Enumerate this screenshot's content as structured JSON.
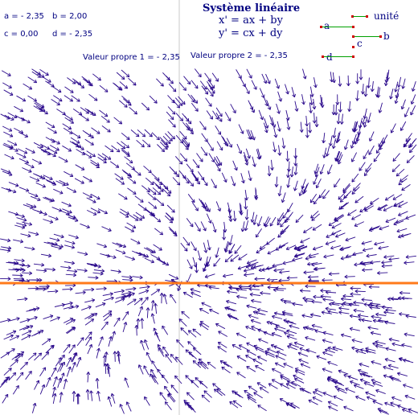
{
  "params": {
    "a": "a = - 2,35",
    "b": "b = 2,00",
    "c": "c = 0,00",
    "d": "d = - 2,35"
  },
  "eigen": {
    "v1": "Valeur propre 1 =  - 2,35",
    "v2": "Valeur propre 2 =  - 2,35"
  },
  "title": "Système linéaire",
  "equations": {
    "x": "x' = ax + by",
    "y": "y' = cx + dy"
  },
  "sliders": {
    "unit_label": "unité",
    "a_label": "a",
    "b_label": "b",
    "c_label": "c",
    "d_label": "d"
  },
  "colors": {
    "arrow": "#2b0a8c",
    "axis": "#c8c8c8",
    "eigenline": "#ff7a1a",
    "text": "#000080",
    "slider_line": "#00a000",
    "slider_dot": "#d00000"
  },
  "system": {
    "a": -2.35,
    "b": 2.0,
    "c": 0.0,
    "d": -2.35
  }
}
